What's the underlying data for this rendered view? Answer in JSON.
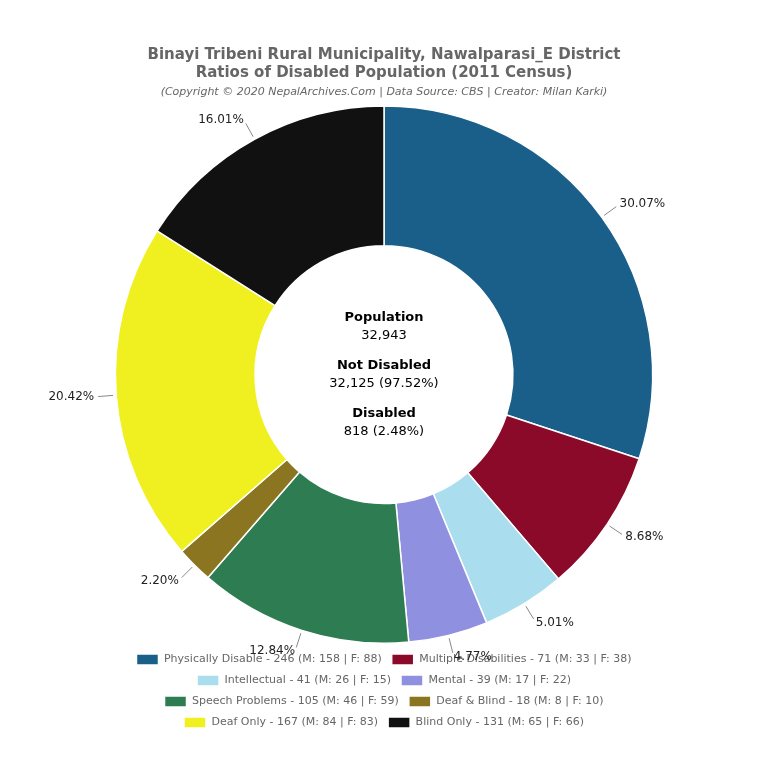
{
  "chart_data": {
    "type": "doughnut",
    "title": [
      "Binayi Tribeni Rural Municipality, Nawalparasi_E District",
      "Ratios of Disabled Population (2011 Census)"
    ],
    "subtitle": "(Copyright © 2020 NepalArchives.Com | Data Source: CBS | Creator: Milan Karki)",
    "categories": [
      "Physically Disable - 246 (M: 158 | F: 88)",
      "Multiple Disabilities - 71 (M: 33 | F: 38)",
      "Intellectual - 41 (M: 26 | F: 15)",
      "Mental - 39 (M: 17 | F: 22)",
      "Speech Problems - 105 (M: 46 | F: 59)",
      "Deaf & Blind - 18 (M: 8 | F: 10)",
      "Deaf Only - 167 (M: 84 | F: 83)",
      "Blind Only - 131 (M: 65 | F: 66)"
    ],
    "values": [
      30.07,
      8.68,
      5.01,
      4.77,
      12.84,
      2.2,
      20.42,
      16.01
    ],
    "value_labels": [
      "30.07%",
      "8.68%",
      "5.01%",
      "4.77%",
      "12.84%",
      "2.20%",
      "20.42%",
      "16.01%"
    ],
    "data_labels": true,
    "colors": [
      "#1a5f8a",
      "#8b0a2a",
      "#aaddee",
      "#9090e0",
      "#2e7d52",
      "#8b7520",
      "#f0f020",
      "#111111"
    ],
    "legend": "bottom",
    "annotations": [
      "Population",
      "32,943",
      "Not Disabled",
      "32,125 (97.52%)",
      "Disabled",
      "818 (2.48%)"
    ]
  }
}
